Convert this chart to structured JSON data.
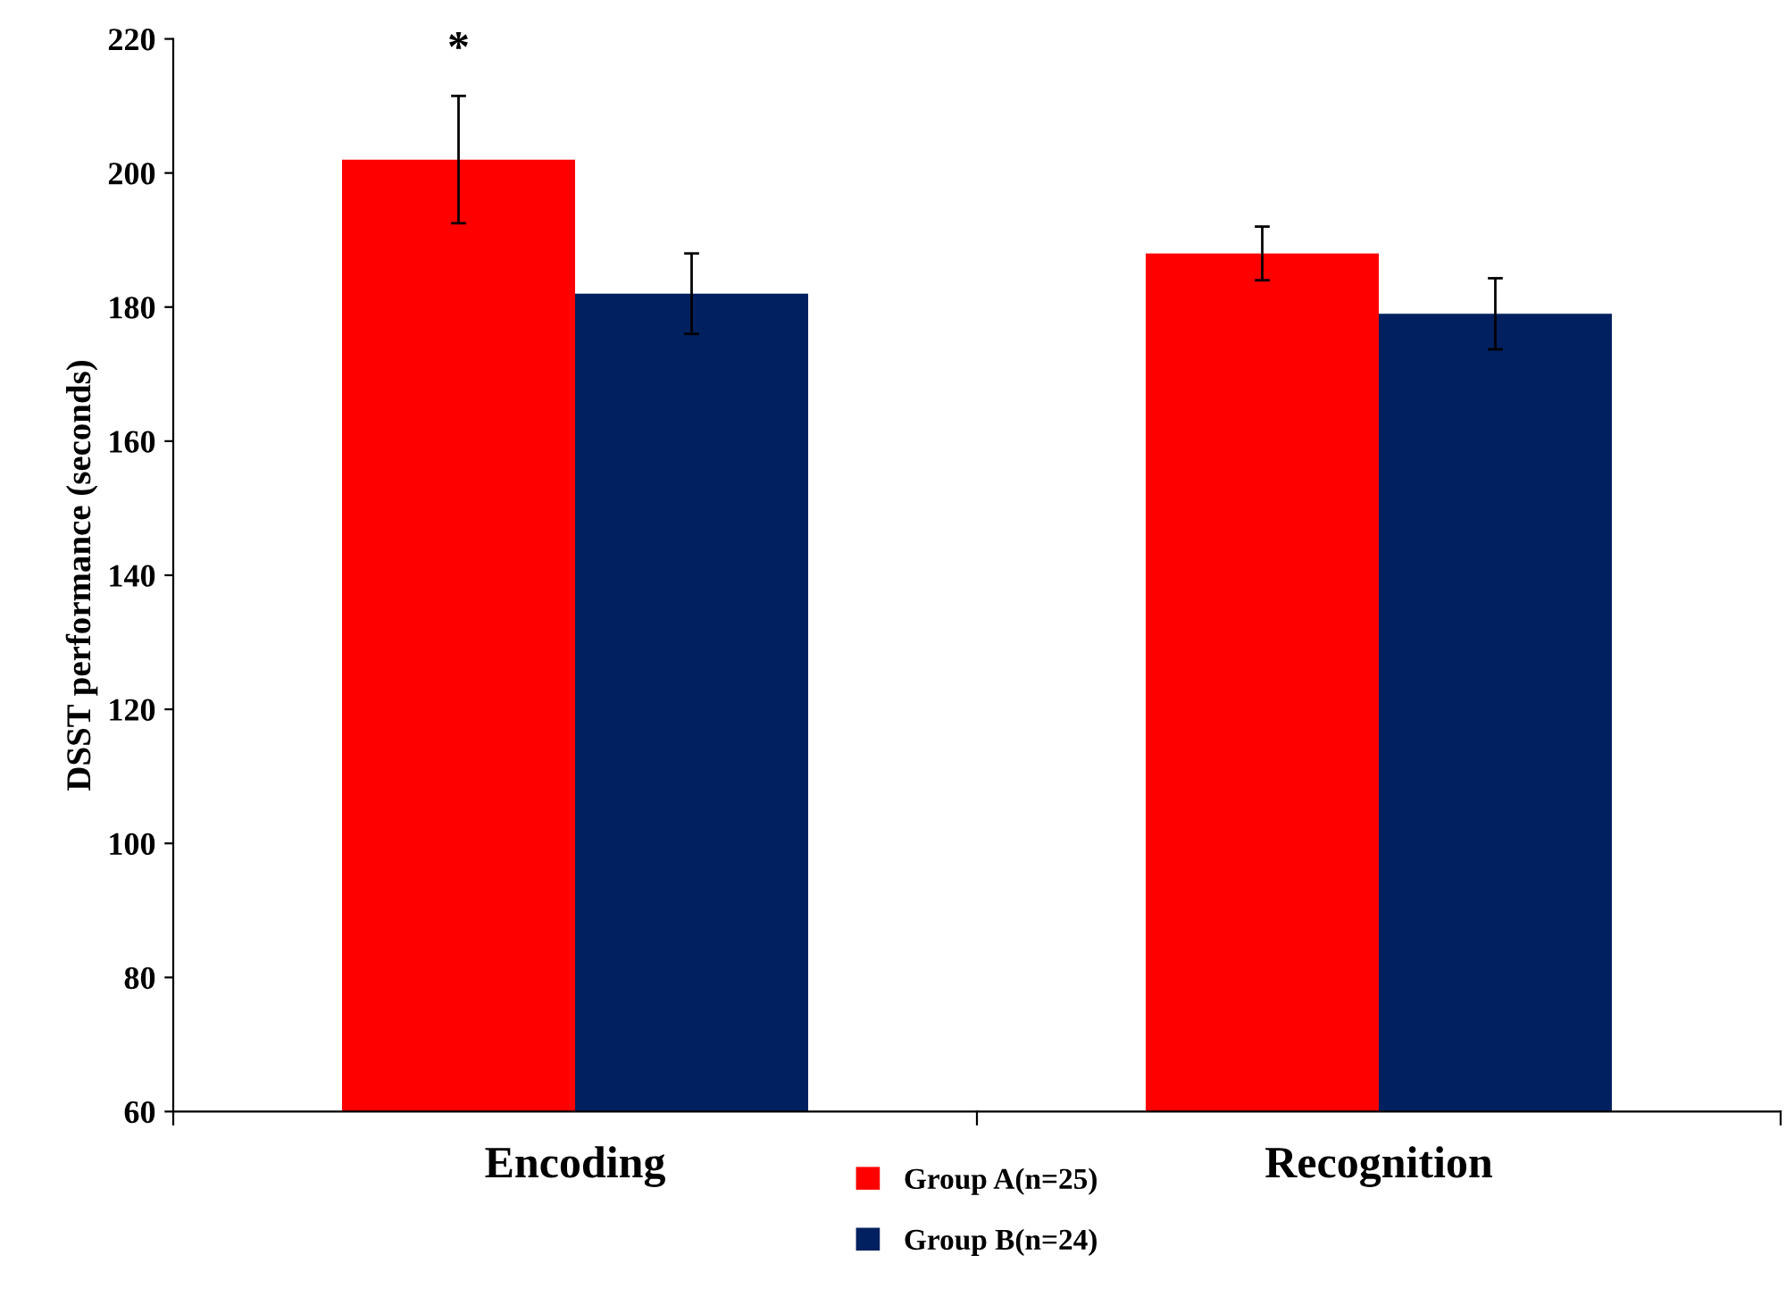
{
  "chart_data": {
    "type": "bar",
    "ylabel": "DSST performance (seconds)",
    "categories": [
      "Encoding",
      "Recognition"
    ],
    "series": [
      {
        "name": "Group A(n=25)",
        "color": "#ff0000",
        "values": [
          202,
          188
        ],
        "errors": [
          9.5,
          4
        ]
      },
      {
        "name": "Group B(n=24)",
        "color": "#002060",
        "values": [
          182,
          179
        ],
        "errors": [
          6,
          5.3
        ]
      }
    ],
    "ylim": [
      60,
      220
    ],
    "yticks": [
      60,
      80,
      100,
      120,
      140,
      160,
      180,
      200,
      220
    ],
    "annotations": [
      "*"
    ],
    "grid": false,
    "legend": "bottom"
  }
}
